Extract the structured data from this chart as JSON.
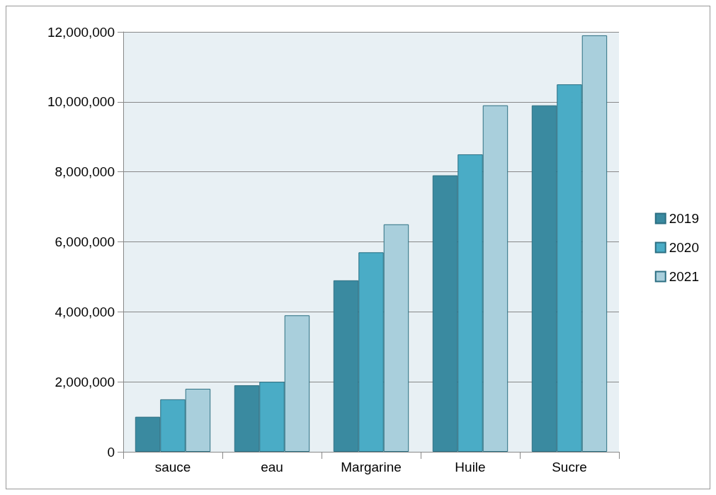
{
  "chart_data": {
    "type": "bar",
    "categories": [
      "sauce",
      "eau",
      "Margarine",
      "Huile",
      "Sucre"
    ],
    "series": [
      {
        "name": "2019",
        "color": "#3a8aa0",
        "values": [
          1000000,
          1900000,
          4900000,
          7900000,
          9900000
        ]
      },
      {
        "name": "2020",
        "color": "#4aacc6",
        "values": [
          1500000,
          2000000,
          5700000,
          8500000,
          10500000
        ]
      },
      {
        "name": "2021",
        "color": "#a9cfdc",
        "values": [
          1800000,
          3900000,
          6500000,
          9900000,
          11900000
        ]
      }
    ],
    "ylim": [
      0,
      12000000
    ],
    "yticks": [
      0,
      {
        "value": 2000000,
        "label": "2,000,000"
      },
      {
        "value": 4000000,
        "label": "4,000,000"
      },
      {
        "value": 6000000,
        "label": "6,000,000"
      },
      {
        "value": 8000000,
        "label": "8,000,000"
      },
      {
        "value": 10000000,
        "label": "10,000,000"
      },
      {
        "value": 12000000,
        "label": "12,000,000"
      }
    ],
    "grid": "y",
    "legend": "right"
  }
}
